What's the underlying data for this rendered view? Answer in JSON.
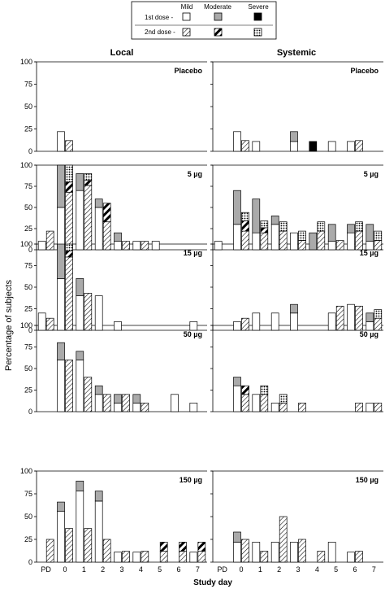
{
  "chart_data": {
    "type": "bar",
    "stacked": true,
    "columns": [
      "Local",
      "Systemic"
    ],
    "row_labels": [
      "Placebo",
      "5 µg",
      "15 µg",
      "50 µg",
      "150 µg"
    ],
    "ylabel": "Percentage of subjects",
    "xlabel": "Study day",
    "x_categories": [
      "PD",
      "0",
      "1",
      "2",
      "3",
      "4",
      "5",
      "6",
      "7"
    ],
    "ylim": [
      0,
      100
    ],
    "y_ticks": [
      0,
      25,
      50,
      75,
      100
    ],
    "legend": {
      "severities": [
        "Mild",
        "Moderate",
        "Severe"
      ],
      "doses": [
        "1st dose -",
        "2nd dose -"
      ]
    },
    "colors": {
      "mild": "#ffffff",
      "moderate": "#aaaaaa",
      "severe": "#000000"
    },
    "panels": [
      {
        "column": "Local",
        "row": "Placebo",
        "groups": [
          {
            "x": "0",
            "dose": 1,
            "mild": 22,
            "moderate": 0,
            "severe": 0
          },
          {
            "x": "0",
            "dose": 2,
            "mild": 12,
            "moderate": 0,
            "severe": 0
          }
        ]
      },
      {
        "column": "Local",
        "row": "5 µg",
        "groups": [
          {
            "x": "PD",
            "dose": 1,
            "mild": 10,
            "moderate": 0,
            "severe": 0
          },
          {
            "x": "PD",
            "dose": 2,
            "mild": 22,
            "moderate": 0,
            "severe": 0
          },
          {
            "x": "0",
            "dose": 1,
            "mild": 50,
            "moderate": 50,
            "severe": 0
          },
          {
            "x": "0",
            "dose": 2,
            "mild": 68,
            "moderate": 12,
            "severe": 20
          },
          {
            "x": "1",
            "dose": 1,
            "mild": 70,
            "moderate": 20,
            "severe": 0
          },
          {
            "x": "1",
            "dose": 2,
            "mild": 76,
            "moderate": 6,
            "severe": 8
          },
          {
            "x": "2",
            "dose": 1,
            "mild": 50,
            "moderate": 10,
            "severe": 0
          },
          {
            "x": "2",
            "dose": 2,
            "mild": 33,
            "moderate": 22,
            "severe": 0
          },
          {
            "x": "3",
            "dose": 1,
            "mild": 10,
            "moderate": 10,
            "severe": 0
          },
          {
            "x": "3",
            "dose": 2,
            "mild": 10,
            "moderate": 0,
            "severe": 0
          },
          {
            "x": "4",
            "dose": 1,
            "mild": 10,
            "moderate": 0,
            "severe": 0
          },
          {
            "x": "4",
            "dose": 2,
            "mild": 10,
            "moderate": 0,
            "severe": 0
          },
          {
            "x": "5",
            "dose": 1,
            "mild": 10,
            "moderate": 0,
            "severe": 0
          }
        ]
      },
      {
        "column": "Local",
        "row": "15 µg",
        "groups": [
          {
            "x": "PD",
            "dose": 1,
            "mild": 20,
            "moderate": 0,
            "severe": 0
          },
          {
            "x": "PD",
            "dose": 2,
            "mild": 14,
            "moderate": 0,
            "severe": 0
          },
          {
            "x": "0",
            "dose": 1,
            "mild": 60,
            "moderate": 40,
            "severe": 0
          },
          {
            "x": "0",
            "dose": 2,
            "mild": 85,
            "moderate": 7,
            "severe": 8
          },
          {
            "x": "1",
            "dose": 1,
            "mild": 40,
            "moderate": 20,
            "severe": 0
          },
          {
            "x": "1",
            "dose": 2,
            "mild": 43,
            "moderate": 0,
            "severe": 0
          },
          {
            "x": "2",
            "dose": 1,
            "mild": 40,
            "moderate": 0,
            "severe": 0
          },
          {
            "x": "3",
            "dose": 1,
            "mild": 10,
            "moderate": 0,
            "severe": 0
          },
          {
            "x": "7",
            "dose": 1,
            "mild": 10,
            "moderate": 0,
            "severe": 0
          }
        ]
      },
      {
        "column": "Local",
        "row": "50 µg",
        "groups": [
          {
            "x": "0",
            "dose": 1,
            "mild": 60,
            "moderate": 20,
            "severe": 0
          },
          {
            "x": "0",
            "dose": 2,
            "mild": 60,
            "moderate": 0,
            "severe": 0
          },
          {
            "x": "1",
            "dose": 1,
            "mild": 60,
            "moderate": 10,
            "severe": 0
          },
          {
            "x": "1",
            "dose": 2,
            "mild": 40,
            "moderate": 0,
            "severe": 0
          },
          {
            "x": "2",
            "dose": 1,
            "mild": 20,
            "moderate": 10,
            "severe": 0
          },
          {
            "x": "2",
            "dose": 2,
            "mild": 20,
            "moderate": 0,
            "severe": 0
          },
          {
            "x": "3",
            "dose": 1,
            "mild": 10,
            "moderate": 10,
            "severe": 0
          },
          {
            "x": "3",
            "dose": 2,
            "mild": 20,
            "moderate": 0,
            "severe": 0
          },
          {
            "x": "4",
            "dose": 1,
            "mild": 10,
            "moderate": 10,
            "severe": 0
          },
          {
            "x": "4",
            "dose": 2,
            "mild": 10,
            "moderate": 0,
            "severe": 0
          },
          {
            "x": "6",
            "dose": 1,
            "mild": 20,
            "moderate": 0,
            "severe": 0
          },
          {
            "x": "7",
            "dose": 1,
            "mild": 10,
            "moderate": 0,
            "severe": 0
          }
        ]
      },
      {
        "column": "Local",
        "row": "150 µg",
        "groups": [
          {
            "x": "PD",
            "dose": 2,
            "mild": 25,
            "moderate": 0,
            "severe": 0
          },
          {
            "x": "0",
            "dose": 1,
            "mild": 56,
            "moderate": 10,
            "severe": 0
          },
          {
            "x": "0",
            "dose": 2,
            "mild": 37,
            "moderate": 0,
            "severe": 0
          },
          {
            "x": "1",
            "dose": 1,
            "mild": 78,
            "moderate": 11,
            "severe": 0
          },
          {
            "x": "1",
            "dose": 2,
            "mild": 37,
            "moderate": 0,
            "severe": 0
          },
          {
            "x": "2",
            "dose": 1,
            "mild": 67,
            "moderate": 11,
            "severe": 0
          },
          {
            "x": "2",
            "dose": 2,
            "mild": 25,
            "moderate": 0,
            "severe": 0
          },
          {
            "x": "3",
            "dose": 1,
            "mild": 11,
            "moderate": 0,
            "severe": 0
          },
          {
            "x": "3",
            "dose": 2,
            "mild": 12,
            "moderate": 0,
            "severe": 0
          },
          {
            "x": "4",
            "dose": 1,
            "mild": 11,
            "moderate": 0,
            "severe": 0
          },
          {
            "x": "4",
            "dose": 2,
            "mild": 12,
            "moderate": 0,
            "severe": 0
          },
          {
            "x": "5",
            "dose": 2,
            "mild": 12,
            "moderate": 10,
            "severe": 0
          },
          {
            "x": "6",
            "dose": 2,
            "mild": 12,
            "moderate": 10,
            "severe": 0
          },
          {
            "x": "7",
            "dose": 1,
            "mild": 11,
            "moderate": 0,
            "severe": 0
          },
          {
            "x": "7",
            "dose": 2,
            "mild": 12,
            "moderate": 10,
            "severe": 0
          }
        ]
      },
      {
        "column": "Systemic",
        "row": "Placebo",
        "groups": [
          {
            "x": "0",
            "dose": 1,
            "mild": 22,
            "moderate": 0,
            "severe": 0
          },
          {
            "x": "0",
            "dose": 2,
            "mild": 12,
            "moderate": 0,
            "severe": 0
          },
          {
            "x": "1",
            "dose": 1,
            "mild": 11,
            "moderate": 0,
            "severe": 0
          },
          {
            "x": "3",
            "dose": 1,
            "mild": 11,
            "moderate": 11,
            "severe": 0
          },
          {
            "x": "4",
            "dose": 1,
            "mild": 0,
            "moderate": 0,
            "severe": 11
          },
          {
            "x": "5",
            "dose": 1,
            "mild": 11,
            "moderate": 0,
            "severe": 0
          },
          {
            "x": "6",
            "dose": 1,
            "mild": 11,
            "moderate": 0,
            "severe": 0
          },
          {
            "x": "6",
            "dose": 2,
            "mild": 12,
            "moderate": 0,
            "severe": 0
          }
        ]
      },
      {
        "column": "Systemic",
        "row": "5 µg",
        "groups": [
          {
            "x": "PD",
            "dose": 1,
            "mild": 10,
            "moderate": 0,
            "severe": 0
          },
          {
            "x": "0",
            "dose": 1,
            "mild": 30,
            "moderate": 40,
            "severe": 0
          },
          {
            "x": "0",
            "dose": 2,
            "mild": 22,
            "moderate": 12,
            "severe": 10
          },
          {
            "x": "1",
            "dose": 1,
            "mild": 20,
            "moderate": 40,
            "severe": 0
          },
          {
            "x": "1",
            "dose": 2,
            "mild": 20,
            "moderate": 6,
            "severe": 8
          },
          {
            "x": "2",
            "dose": 1,
            "mild": 30,
            "moderate": 10,
            "severe": 0
          },
          {
            "x": "2",
            "dose": 2,
            "mild": 22,
            "moderate": 0,
            "severe": 11
          },
          {
            "x": "3",
            "dose": 1,
            "mild": 20,
            "moderate": 0,
            "severe": 0
          },
          {
            "x": "3",
            "dose": 2,
            "mild": 11,
            "moderate": 0,
            "severe": 11
          },
          {
            "x": "4",
            "dose": 1,
            "mild": 0,
            "moderate": 20,
            "severe": 0
          },
          {
            "x": "4",
            "dose": 2,
            "mild": 22,
            "moderate": 0,
            "severe": 11
          },
          {
            "x": "5",
            "dose": 1,
            "mild": 10,
            "moderate": 20,
            "severe": 0
          },
          {
            "x": "5",
            "dose": 2,
            "mild": 11,
            "moderate": 0,
            "severe": 0
          },
          {
            "x": "6",
            "dose": 1,
            "mild": 20,
            "moderate": 10,
            "severe": 0
          },
          {
            "x": "6",
            "dose": 2,
            "mild": 22,
            "moderate": 0,
            "severe": 11
          },
          {
            "x": "7",
            "dose": 1,
            "mild": 10,
            "moderate": 20,
            "severe": 0
          },
          {
            "x": "7",
            "dose": 2,
            "mild": 11,
            "moderate": 0,
            "severe": 11
          }
        ]
      },
      {
        "column": "Systemic",
        "row": "15 µg",
        "groups": [
          {
            "x": "0",
            "dose": 1,
            "mild": 10,
            "moderate": 0,
            "severe": 0
          },
          {
            "x": "0",
            "dose": 2,
            "mild": 14,
            "moderate": 0,
            "severe": 0
          },
          {
            "x": "1",
            "dose": 1,
            "mild": 20,
            "moderate": 0,
            "severe": 0
          },
          {
            "x": "2",
            "dose": 1,
            "mild": 20,
            "moderate": 0,
            "severe": 0
          },
          {
            "x": "3",
            "dose": 1,
            "mild": 20,
            "moderate": 10,
            "severe": 0
          },
          {
            "x": "5",
            "dose": 1,
            "mild": 20,
            "moderate": 0,
            "severe": 0
          },
          {
            "x": "5",
            "dose": 2,
            "mild": 28,
            "moderate": 0,
            "severe": 0
          },
          {
            "x": "6",
            "dose": 1,
            "mild": 30,
            "moderate": 0,
            "severe": 0
          },
          {
            "x": "6",
            "dose": 2,
            "mild": 28,
            "moderate": 0,
            "severe": 0
          },
          {
            "x": "7",
            "dose": 1,
            "mild": 10,
            "moderate": 10,
            "severe": 0
          },
          {
            "x": "7",
            "dose": 2,
            "mild": 14,
            "moderate": 0,
            "severe": 10
          }
        ]
      },
      {
        "column": "Systemic",
        "row": "50 µg",
        "groups": [
          {
            "x": "0",
            "dose": 1,
            "mild": 30,
            "moderate": 10,
            "severe": 0
          },
          {
            "x": "0",
            "dose": 2,
            "mild": 20,
            "moderate": 10,
            "severe": 0
          },
          {
            "x": "1",
            "dose": 1,
            "mild": 20,
            "moderate": 0,
            "severe": 0
          },
          {
            "x": "1",
            "dose": 2,
            "mild": 20,
            "moderate": 0,
            "severe": 10
          },
          {
            "x": "2",
            "dose": 1,
            "mild": 10,
            "moderate": 0,
            "severe": 0
          },
          {
            "x": "2",
            "dose": 2,
            "mild": 10,
            "moderate": 0,
            "severe": 10
          },
          {
            "x": "3",
            "dose": 2,
            "mild": 10,
            "moderate": 0,
            "severe": 0
          },
          {
            "x": "6",
            "dose": 2,
            "mild": 10,
            "moderate": 0,
            "severe": 0
          },
          {
            "x": "7",
            "dose": 1,
            "mild": 10,
            "moderate": 0,
            "severe": 0
          },
          {
            "x": "7",
            "dose": 2,
            "mild": 10,
            "moderate": 0,
            "severe": 0
          }
        ]
      },
      {
        "column": "Systemic",
        "row": "150 µg",
        "groups": [
          {
            "x": "0",
            "dose": 1,
            "mild": 22,
            "moderate": 11,
            "severe": 0
          },
          {
            "x": "0",
            "dose": 2,
            "mild": 25,
            "moderate": 0,
            "severe": 0
          },
          {
            "x": "1",
            "dose": 1,
            "mild": 22,
            "moderate": 0,
            "severe": 0
          },
          {
            "x": "1",
            "dose": 2,
            "mild": 12,
            "moderate": 0,
            "severe": 0
          },
          {
            "x": "2",
            "dose": 1,
            "mild": 22,
            "moderate": 0,
            "severe": 0
          },
          {
            "x": "2",
            "dose": 2,
            "mild": 50,
            "moderate": 0,
            "severe": 0
          },
          {
            "x": "3",
            "dose": 1,
            "mild": 22,
            "moderate": 0,
            "severe": 0
          },
          {
            "x": "3",
            "dose": 2,
            "mild": 25,
            "moderate": 0,
            "severe": 0
          },
          {
            "x": "4",
            "dose": 2,
            "mild": 12,
            "moderate": 0,
            "severe": 0
          },
          {
            "x": "5",
            "dose": 1,
            "mild": 22,
            "moderate": 0,
            "severe": 0
          },
          {
            "x": "6",
            "dose": 1,
            "mild": 11,
            "moderate": 0,
            "severe": 0
          },
          {
            "x": "6",
            "dose": 2,
            "mild": 12,
            "moderate": 0,
            "severe": 0
          }
        ]
      }
    ]
  }
}
